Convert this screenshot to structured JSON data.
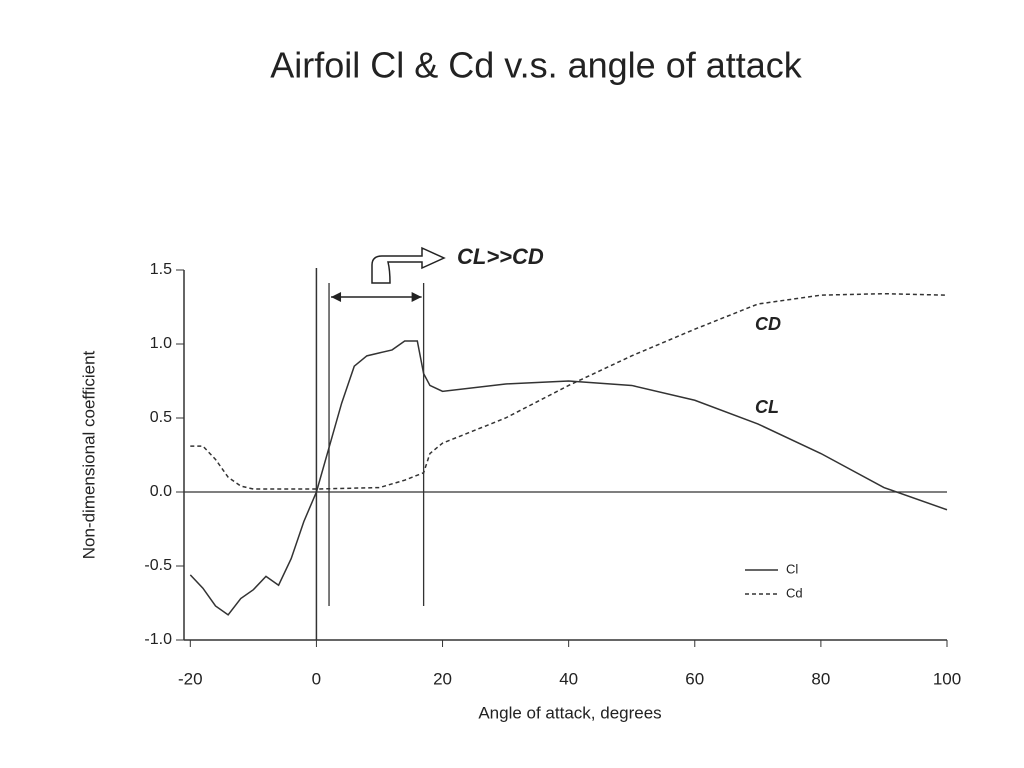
{
  "chart_data": {
    "type": "line",
    "title": "Airfoil Cl & Cd v.s. angle of attack",
    "xlabel": "Angle of attack, degrees",
    "ylabel": "Non-dimensional coefficient",
    "xlim": [
      -21,
      100
    ],
    "xticks": [
      -20,
      0,
      20,
      40,
      60,
      80,
      100
    ],
    "ylim": [
      -1.0,
      1.5
    ],
    "yticks": [
      {
        "value": -1.0,
        "label": "-1.0"
      },
      -0.5,
      {
        "value": 0.0,
        "label": "0.0"
      },
      0.5,
      {
        "value": 1.0,
        "label": "1.0"
      },
      1.5
    ],
    "series": [
      {
        "name": "Cl",
        "color": "#333333",
        "dash": "none",
        "x": [
          -20,
          -18,
          -16,
          -14,
          -12,
          -10,
          -8,
          -6,
          -4,
          -2,
          0,
          2,
          4,
          6,
          8,
          10,
          12,
          14,
          16,
          17,
          18,
          20,
          30,
          40,
          50,
          60,
          70,
          80,
          90,
          100
        ],
        "values": [
          -0.56,
          -0.65,
          -0.77,
          -0.83,
          -0.72,
          -0.66,
          -0.57,
          -0.63,
          -0.45,
          -0.2,
          0.0,
          0.3,
          0.6,
          0.85,
          0.92,
          0.94,
          0.96,
          1.02,
          1.02,
          0.8,
          0.72,
          0.68,
          0.73,
          0.75,
          0.72,
          0.62,
          0.46,
          0.26,
          0.03,
          -0.12
        ]
      },
      {
        "name": "Cd",
        "color": "#333333",
        "dash": "4 3",
        "x": [
          -20,
          -18,
          -16,
          -14,
          -12,
          -10,
          0,
          10,
          14,
          17,
          18,
          20,
          30,
          40,
          50,
          60,
          70,
          80,
          90,
          100
        ],
        "values": [
          0.31,
          0.31,
          0.22,
          0.1,
          0.04,
          0.02,
          0.02,
          0.03,
          0.08,
          0.13,
          0.26,
          0.33,
          0.5,
          0.72,
          0.92,
          1.1,
          1.27,
          1.33,
          1.34,
          1.33
        ]
      }
    ],
    "reference_lines_x": [
      2,
      17
    ],
    "annotations": [
      "CL>>CD",
      "CD",
      "CL"
    ]
  }
}
